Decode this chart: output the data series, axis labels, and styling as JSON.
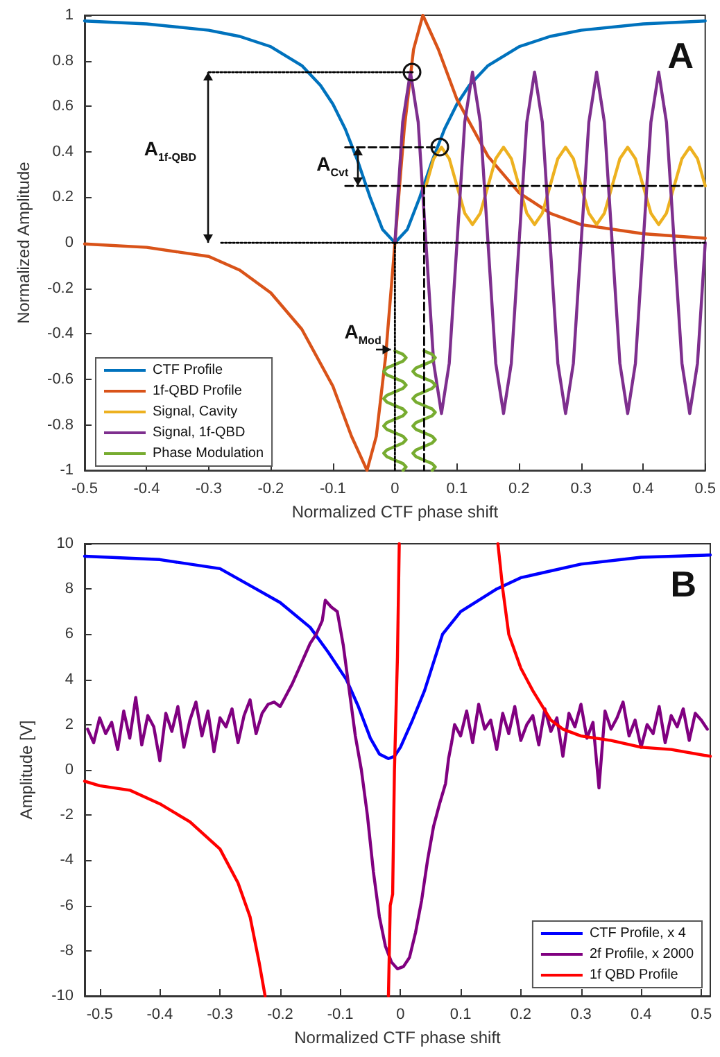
{
  "chart_data": [
    {
      "type": "line",
      "xlabel": "Normalized CTF phase shift",
      "ylabel": "Normalized Amplitude",
      "xlim": [
        -0.5,
        0.5
      ],
      "ylim": [
        -1,
        1
      ],
      "xticks": [
        -0.5,
        -0.4,
        -0.3,
        -0.2,
        -0.1,
        0,
        0.1,
        0.2,
        0.3,
        0.4,
        0.5
      ],
      "yticks": [
        -1,
        -0.8,
        -0.6,
        -0.4,
        -0.2,
        0,
        0.2,
        0.4,
        0.6,
        0.8,
        1
      ],
      "grid": false,
      "legend": "bottom left",
      "line_style": "solid",
      "annotations": [
        "A$_{1f-QBD}$",
        "A$_{Cvt}$",
        "A$_{Mod}$",
        "A"
      ],
      "series": [
        {
          "name": "CTF Profile",
          "color": "#0072bd",
          "x": [
            -0.5,
            -0.4,
            -0.3,
            -0.25,
            -0.2,
            -0.15,
            -0.12,
            -0.1,
            -0.08,
            -0.06,
            -0.04,
            -0.02,
            0,
            0.02,
            0.04,
            0.06,
            0.08,
            0.1,
            0.12,
            0.15,
            0.2,
            0.25,
            0.3,
            0.4,
            0.5
          ],
          "values": [
            0.975,
            0.962,
            0.934,
            0.907,
            0.862,
            0.779,
            0.692,
            0.61,
            0.5,
            0.36,
            0.2,
            0.059,
            0,
            0.059,
            0.2,
            0.36,
            0.5,
            0.61,
            0.692,
            0.779,
            0.862,
            0.907,
            0.934,
            0.962,
            0.975
          ]
        },
        {
          "name": "1f-QBD Profile",
          "color": "#d95319",
          "x": [
            -0.5,
            -0.4,
            -0.3,
            -0.25,
            -0.2,
            -0.15,
            -0.1,
            -0.07,
            -0.045,
            -0.03,
            -0.015,
            0,
            0.015,
            0.03,
            0.045,
            0.07,
            0.1,
            0.15,
            0.2,
            0.25,
            0.3,
            0.4,
            0.5
          ],
          "values": [
            -0.005,
            -0.02,
            -0.06,
            -0.12,
            -0.22,
            -0.38,
            -0.63,
            -0.85,
            -1,
            -0.85,
            -0.5,
            0,
            0.5,
            0.85,
            1,
            0.85,
            0.63,
            0.38,
            0.22,
            0.13,
            0.08,
            0.04,
            0.02
          ]
        },
        {
          "name": "Signal, Cavity",
          "color": "#edb120",
          "x": [
            0.05,
            0.0625,
            0.075,
            0.0875,
            0.1,
            0.1125,
            0.125,
            0.1375,
            0.15,
            0.1625,
            0.175,
            0.1875,
            0.2,
            0.2125,
            0.225,
            0.2375,
            0.25,
            0.2625,
            0.275,
            0.2875,
            0.3,
            0.3125,
            0.325,
            0.3375,
            0.35,
            0.3625,
            0.375,
            0.3875,
            0.4,
            0.4125,
            0.425,
            0.4375,
            0.45,
            0.4625,
            0.475,
            0.4875,
            0.5
          ],
          "values": [
            0.25,
            0.37,
            0.42,
            0.37,
            0.25,
            0.13,
            0.08,
            0.13,
            0.25,
            0.37,
            0.42,
            0.37,
            0.25,
            0.13,
            0.08,
            0.13,
            0.25,
            0.37,
            0.42,
            0.37,
            0.25,
            0.13,
            0.08,
            0.13,
            0.25,
            0.37,
            0.42,
            0.37,
            0.25,
            0.13,
            0.08,
            0.13,
            0.25,
            0.37,
            0.42,
            0.37,
            0.25
          ]
        },
        {
          "name": "Signal, 1f-QBD",
          "color": "#7e2f8e",
          "x": [
            0,
            0.0125,
            0.025,
            0.0375,
            0.05,
            0.0625,
            0.075,
            0.0875,
            0.1,
            0.1125,
            0.125,
            0.1375,
            0.15,
            0.1625,
            0.175,
            0.1875,
            0.2,
            0.2125,
            0.225,
            0.2375,
            0.25,
            0.2625,
            0.275,
            0.2875,
            0.3,
            0.3125,
            0.325,
            0.3375,
            0.35,
            0.3625,
            0.375,
            0.3875,
            0.4,
            0.4125,
            0.425,
            0.4375,
            0.45,
            0.4625,
            0.475,
            0.4875,
            0.5
          ],
          "values": [
            0,
            0.53,
            0.75,
            0.53,
            0,
            -0.53,
            -0.75,
            -0.53,
            0,
            0.53,
            0.75,
            0.53,
            0,
            -0.53,
            -0.75,
            -0.53,
            0,
            0.53,
            0.75,
            0.53,
            0,
            -0.53,
            -0.75,
            -0.53,
            0,
            0.53,
            0.75,
            0.53,
            0,
            -0.53,
            -0.75,
            -0.53,
            0,
            0.53,
            0.75,
            0.53,
            0,
            -0.53,
            -0.75,
            -0.53,
            0
          ]
        },
        {
          "name": "Phase Modulation",
          "color": "#77ac30",
          "x": [
            0,
            0.013,
            0.018,
            0.013,
            0,
            -0.013,
            -0.018,
            -0.013,
            0,
            0.013,
            0.018,
            0.013,
            0,
            -0.013,
            -0.018,
            -0.013,
            0,
            0.013,
            0.018,
            0.013,
            0,
            -0.013,
            -0.018,
            -0.013,
            0,
            0.013,
            0.018,
            0.013,
            0,
            -0.013,
            -0.018,
            -0.013,
            0,
            0.013,
            0.018,
            0.013,
            0.03,
            0.047,
            0.06,
            0.065,
            0.06,
            0.047,
            0.034,
            0.029,
            0.034,
            0.047,
            0.06,
            0.065,
            0.06,
            0.047,
            0.034,
            0.029,
            0.034,
            0.047,
            0.06,
            0.065,
            0.06,
            0.047,
            0.034,
            0.029,
            0.034,
            0.047,
            0.06,
            0.065,
            0.06,
            0.047,
            0.034,
            0.029,
            0.034,
            0.047,
            0.06,
            0.065,
            0.06
          ],
          "values": [
            -0.475,
            -0.49,
            -0.505,
            -0.52,
            -0.535,
            -0.55,
            -0.565,
            -0.58,
            -0.595,
            -0.61,
            -0.625,
            -0.64,
            -0.655,
            -0.67,
            -0.685,
            -0.7,
            -0.715,
            -0.73,
            -0.745,
            -0.76,
            -0.775,
            -0.79,
            -0.805,
            -0.82,
            -0.835,
            -0.85,
            -0.865,
            -0.88,
            -0.895,
            -0.91,
            -0.925,
            -0.94,
            -0.955,
            -0.97,
            -0.985,
            -1,
            null,
            -0.475,
            -0.49,
            -0.505,
            -0.52,
            -0.535,
            -0.55,
            -0.565,
            -0.58,
            -0.595,
            -0.61,
            -0.625,
            -0.64,
            -0.655,
            -0.67,
            -0.685,
            -0.7,
            -0.715,
            -0.73,
            -0.745,
            -0.76,
            -0.775,
            -0.79,
            -0.805,
            -0.82,
            -0.835,
            -0.85,
            -0.865,
            -0.88,
            -0.895,
            -0.91,
            -0.925,
            -0.94,
            -0.955,
            -0.97,
            -0.985,
            -1
          ]
        },
        {
          "color": "#000000",
          "line_style": "dotted",
          "x": [
            -0.3,
            0.03
          ],
          "values": [
            0.75,
            0.75
          ]
        },
        {
          "color": "#000000",
          "line_style": "dotted",
          "x": [
            -0.28,
            0.5
          ],
          "values": [
            0,
            0
          ]
        },
        {
          "color": "#000000",
          "line_style": "dotted",
          "x": [
            0,
            0
          ],
          "values": [
            0,
            -1
          ]
        },
        {
          "color": "#000000",
          "line_style": "dashed",
          "x": [
            -0.08,
            0.07
          ],
          "values": [
            0.42,
            0.42
          ]
        },
        {
          "color": "#000000",
          "line_style": "dashed",
          "x": [
            -0.08,
            0.5
          ],
          "values": [
            0.25,
            0.25
          ]
        },
        {
          "color": "#000000",
          "line_style": "dashed",
          "x": [
            0.047,
            0.047
          ],
          "values": [
            0.25,
            -1
          ]
        }
      ]
    },
    {
      "type": "line",
      "xlabel": "Normalized CTF phase shift",
      "ylabel": "Amplitude [V]",
      "xlim": [
        -0.525,
        0.515
      ],
      "ylim": [
        -10,
        10
      ],
      "xticks": [
        -0.5,
        -0.4,
        -0.3,
        -0.2,
        -0.1,
        0,
        0.1,
        0.2,
        0.3,
        0.4,
        0.5
      ],
      "yticks": [
        -10,
        -8,
        -6,
        -4,
        -2,
        0,
        2,
        4,
        6,
        8,
        10
      ],
      "grid": false,
      "legend": "bottom right",
      "line_style": "solid",
      "annotations": [
        "B"
      ],
      "series": [
        {
          "name": "CTF Profile, x 4",
          "color": "#0000ff",
          "x": [
            -0.525,
            -0.4,
            -0.3,
            -0.24,
            -0.2,
            -0.15,
            -0.12,
            -0.09,
            -0.07,
            -0.05,
            -0.035,
            -0.02,
            -0.01,
            0,
            0.02,
            0.04,
            0.07,
            0.1,
            0.16,
            0.2,
            0.3,
            0.4,
            0.515
          ],
          "values": [
            9.45,
            9.3,
            8.9,
            8,
            7.4,
            6.3,
            5.2,
            4,
            2.8,
            1.4,
            0.7,
            0.5,
            0.6,
            1,
            2.2,
            3.5,
            6,
            7,
            8,
            8.5,
            9.1,
            9.4,
            9.5
          ]
        },
        {
          "name": "2f Profile, x 2000",
          "color": "#800080",
          "x": [
            -0.52,
            -0.51,
            -0.5,
            -0.49,
            -0.48,
            -0.47,
            -0.46,
            -0.45,
            -0.44,
            -0.43,
            -0.42,
            -0.41,
            -0.4,
            -0.39,
            -0.38,
            -0.37,
            -0.36,
            -0.35,
            -0.34,
            -0.33,
            -0.32,
            -0.31,
            -0.3,
            -0.29,
            -0.28,
            -0.27,
            -0.26,
            -0.25,
            -0.24,
            -0.23,
            -0.22,
            -0.21,
            -0.2,
            -0.19,
            -0.18,
            -0.17,
            -0.16,
            -0.15,
            -0.14,
            -0.13,
            -0.125,
            -0.115,
            -0.105,
            -0.095,
            -0.085,
            -0.075,
            -0.065,
            -0.055,
            -0.045,
            -0.035,
            -0.025,
            -0.015,
            -0.005,
            0.005,
            0.015,
            0.025,
            0.035,
            0.045,
            0.055,
            0.065,
            0.075,
            0.08,
            0.085,
            0.09,
            0.1,
            0.11,
            0.12,
            0.13,
            0.14,
            0.15,
            0.16,
            0.17,
            0.18,
            0.19,
            0.2,
            0.21,
            0.22,
            0.23,
            0.24,
            0.25,
            0.26,
            0.27,
            0.28,
            0.29,
            0.3,
            0.31,
            0.32,
            0.33,
            0.34,
            0.35,
            0.36,
            0.37,
            0.38,
            0.39,
            0.4,
            0.41,
            0.42,
            0.43,
            0.44,
            0.45,
            0.46,
            0.47,
            0.48,
            0.49,
            0.5,
            0.51
          ],
          "values": [
            1.8,
            1.2,
            2.3,
            1.6,
            2.1,
            0.9,
            2.6,
            1.4,
            3.2,
            1.1,
            2.4,
            1.9,
            0.4,
            2.5,
            1.7,
            2.8,
            1,
            2.2,
            3,
            1.5,
            2.6,
            0.8,
            2.3,
            1.9,
            2.7,
            1.2,
            2.4,
            3.1,
            1.6,
            2.5,
            2.9,
            3,
            2.8,
            3.3,
            3.8,
            4.4,
            5,
            5.6,
            6,
            6.6,
            7.5,
            7.2,
            7,
            5.5,
            3.5,
            1.5,
            0,
            -2,
            -4.5,
            -6.5,
            -7.8,
            -8.5,
            -8.8,
            -8.7,
            -8.3,
            -7.2,
            -5.8,
            -4,
            -2.5,
            -1.5,
            -0.6,
            0.5,
            1.2,
            2,
            1.5,
            2.6,
            1.2,
            2.9,
            1.8,
            2.2,
            0.9,
            2.5,
            1.6,
            2.8,
            1.3,
            2,
            2.4,
            1.1,
            2.7,
            1.7,
            2.3,
            0.6,
            2.5,
            1.9,
            2.9,
            1.4,
            2.1,
            -0.8,
            2.6,
            1.8,
            2.3,
            3,
            1.5,
            2.2,
            1,
            2,
            1.6,
            2.8,
            1.2,
            2.4,
            1.9,
            2.7,
            1.3,
            2.5,
            2.2,
            1.8
          ]
        },
        {
          "name": "1f QBD Profile",
          "color": "#ff0000",
          "x": [
            -0.525,
            -0.5,
            -0.45,
            -0.4,
            -0.35,
            -0.3,
            -0.27,
            -0.25,
            -0.235,
            -0.225,
            -0.1,
            -0.02,
            -0.017,
            -0.013,
            -0.01,
            -0.005,
            -0.002,
            0.08,
            0.162,
            0.17,
            0.18,
            0.2,
            0.22,
            0.25,
            0.27,
            0.3,
            0.35,
            0.4,
            0.45,
            0.515
          ],
          "values": [
            -0.5,
            -0.7,
            -0.9,
            -1.5,
            -2.3,
            -3.5,
            -5,
            -6.5,
            -8.5,
            -10,
            null,
            -10,
            -6,
            -5.5,
            0,
            5,
            10,
            null,
            10,
            8,
            6,
            4.5,
            3.5,
            2.2,
            1.8,
            1.5,
            1.3,
            1,
            0.9,
            0.6
          ]
        }
      ]
    }
  ]
}
